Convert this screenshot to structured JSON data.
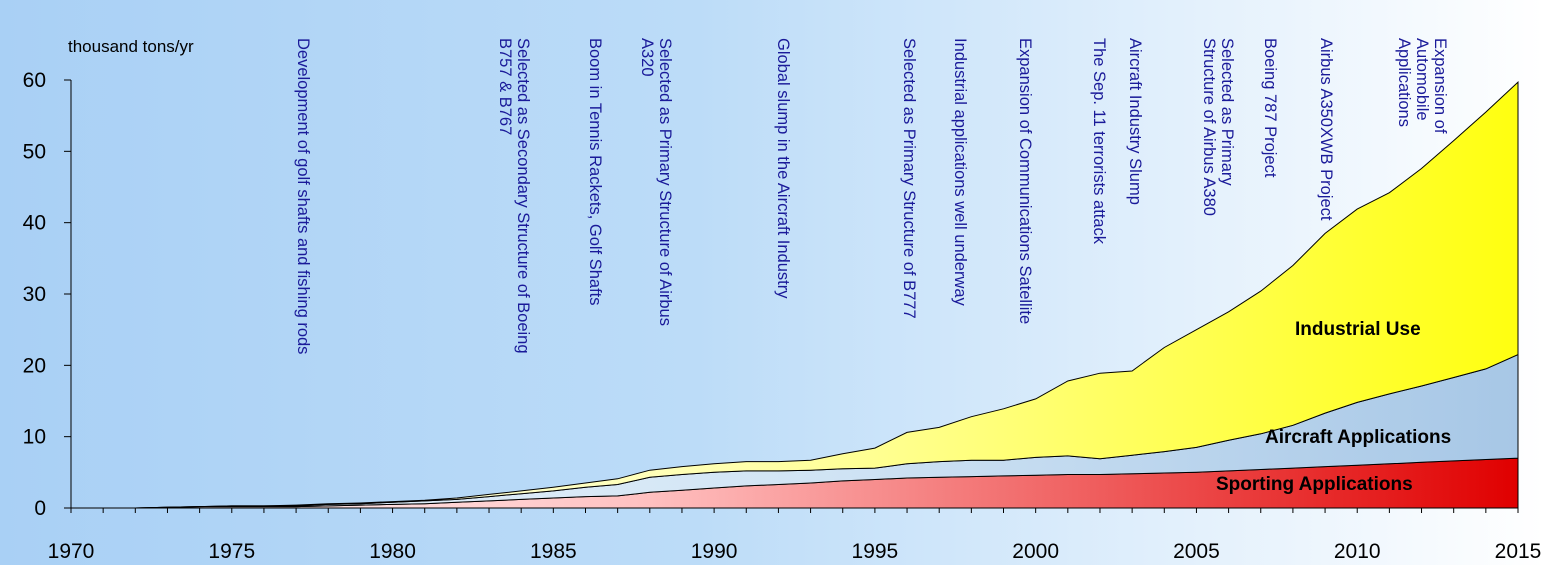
{
  "chart_data": {
    "type": "area",
    "ylabel": "thousand tons/yr",
    "ylim": [
      0,
      60
    ],
    "xlim": [
      1970,
      2015
    ],
    "y_ticks": [
      0,
      10,
      20,
      30,
      40,
      50,
      60
    ],
    "x_ticks": [
      1970,
      1975,
      1980,
      1985,
      1990,
      1995,
      2000,
      2005,
      2010,
      2015
    ],
    "stacked": true,
    "grid": false,
    "x": [
      1970,
      1971,
      1972,
      1973,
      1974,
      1975,
      1976,
      1977,
      1978,
      1979,
      1980,
      1981,
      1982,
      1983,
      1984,
      1985,
      1986,
      1987,
      1988,
      1989,
      1990,
      1991,
      1992,
      1993,
      1994,
      1995,
      1996,
      1997,
      1998,
      1999,
      2000,
      2001,
      2002,
      2003,
      2004,
      2005,
      2006,
      2007,
      2008,
      2009,
      2010,
      2011,
      2012,
      2013,
      2014,
      2015
    ],
    "series": [
      {
        "name": "Sporting Applications",
        "color": "#e00000",
        "values": [
          0,
          0,
          0,
          0.1,
          0.2,
          0.2,
          0.2,
          0.2,
          0.3,
          0.4,
          0.5,
          0.6,
          0.8,
          1.0,
          1.2,
          1.4,
          1.6,
          1.7,
          2.2,
          2.5,
          2.8,
          3.1,
          3.3,
          3.5,
          3.8,
          4.0,
          4.2,
          4.3,
          4.4,
          4.5,
          4.6,
          4.7,
          4.7,
          4.8,
          4.9,
          5.0,
          5.2,
          5.4,
          5.6,
          5.8,
          6.0,
          6.2,
          6.4,
          6.6,
          6.8,
          7.0
        ]
      },
      {
        "name": "Aircraft Applications",
        "color": "#a9c9e8",
        "values": [
          0,
          0,
          0,
          0,
          0,
          0.1,
          0.1,
          0.1,
          0.2,
          0.2,
          0.3,
          0.4,
          0.4,
          0.6,
          0.8,
          1.0,
          1.3,
          1.6,
          2.1,
          2.2,
          2.2,
          2.1,
          1.9,
          1.8,
          1.7,
          1.6,
          2.0,
          2.2,
          2.3,
          2.2,
          2.5,
          2.6,
          2.2,
          2.6,
          3.0,
          3.5,
          4.3,
          5.0,
          6.0,
          7.5,
          8.8,
          9.8,
          10.7,
          11.7,
          12.7,
          14.5
        ]
      },
      {
        "name": "Industrial Use",
        "color": "#ffff20",
        "values": [
          0,
          0,
          0,
          0,
          0,
          0,
          0,
          0.1,
          0.1,
          0.1,
          0.1,
          0.1,
          0.2,
          0.3,
          0.4,
          0.5,
          0.6,
          0.8,
          1.0,
          1.1,
          1.2,
          1.3,
          1.3,
          1.4,
          2.1,
          2.8,
          4.4,
          4.8,
          6.1,
          7.2,
          8.2,
          10.5,
          12.0,
          11.8,
          14.6,
          16.5,
          18.0,
          20.0,
          22.4,
          25.2,
          27.1,
          28.2,
          30.5,
          33.2,
          36.0,
          38.2
        ]
      }
    ],
    "annotations": [
      {
        "year": 1977,
        "lines": [
          "Development of golf shafts and fishing rods"
        ]
      },
      {
        "year": 1983,
        "lines": [
          "Selected as Secondary Structure of Boeing",
          "B757 & B767"
        ]
      },
      {
        "year": 1986,
        "lines": [
          "Boom in Tennis Rackets, Golf Shafts"
        ]
      },
      {
        "year": 1988,
        "lines": [
          "Selected as Primary Structure of Airbus",
          "A320"
        ]
      },
      {
        "year": 1992,
        "lines": [
          "Global slump in the Aircraft Industry"
        ]
      },
      {
        "year": 1996,
        "lines": [
          "Selected as Primary Structure of B777"
        ]
      },
      {
        "year": 1998,
        "lines": [
          "Industrial applications  well underway"
        ]
      },
      {
        "year": 2000,
        "lines": [
          "Expansion of Communications Satellite"
        ]
      },
      {
        "year": 2001,
        "lines": [
          "The Sep. 11 terrorists attack"
        ]
      },
      {
        "year": 2003,
        "lines": [
          "Aircraft Industry Slump"
        ]
      },
      {
        "year": 2005,
        "lines": [
          "Selected as Primary",
          "Structure of Airbus A380"
        ]
      },
      {
        "year": 2007,
        "lines": [
          "Boeing 787 Project"
        ]
      },
      {
        "year": 2009,
        "lines": [
          "Airbus A350XWB Project"
        ]
      },
      {
        "year": 2012,
        "lines": [
          "Expansion of",
          "Automobile",
          "Applications"
        ]
      }
    ]
  }
}
